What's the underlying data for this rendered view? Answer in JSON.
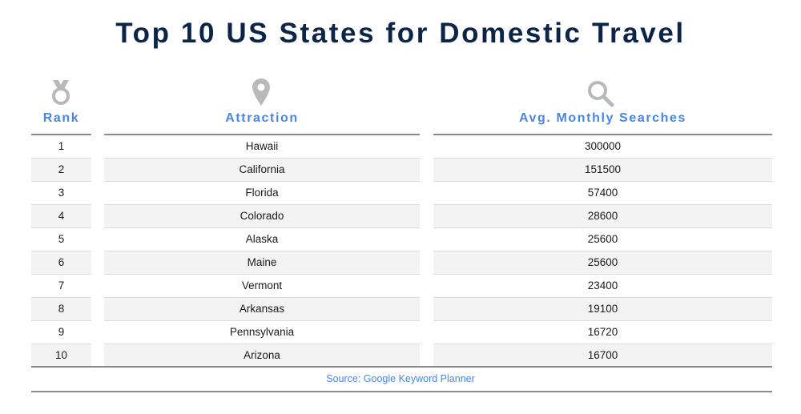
{
  "title": "Top 10 US States for Domestic Travel",
  "columns": {
    "rank": {
      "label": "Rank",
      "icon": "medal-icon"
    },
    "attraction": {
      "label": "Attraction",
      "icon": "location-pin-icon"
    },
    "searches": {
      "label": "Avg. Monthly Searches",
      "icon": "search-icon"
    }
  },
  "colors": {
    "title": "#0b2447",
    "accent": "#4a86e0",
    "icon": "#b9b9b9",
    "stripe": "#f3f3f3"
  },
  "source": "Source: Google Keyword Planner",
  "chart_data": {
    "type": "table",
    "title": "Top 10 US States for Domestic Travel",
    "columns": [
      "Rank",
      "Attraction",
      "Avg. Monthly Searches"
    ],
    "rows": [
      {
        "rank": "1",
        "attraction": "Hawaii",
        "searches": "300000"
      },
      {
        "rank": "2",
        "attraction": "California",
        "searches": "151500"
      },
      {
        "rank": "3",
        "attraction": "Florida",
        "searches": "57400"
      },
      {
        "rank": "4",
        "attraction": "Colorado",
        "searches": "28600"
      },
      {
        "rank": "5",
        "attraction": "Alaska",
        "searches": "25600"
      },
      {
        "rank": "6",
        "attraction": "Maine",
        "searches": "25600"
      },
      {
        "rank": "7",
        "attraction": "Vermont",
        "searches": "23400"
      },
      {
        "rank": "8",
        "attraction": "Arkansas",
        "searches": "19100"
      },
      {
        "rank": "9",
        "attraction": "Pennsylvania",
        "searches": "16720"
      },
      {
        "rank": "10",
        "attraction": "Arizona",
        "searches": "16700"
      }
    ],
    "source": "Source: Google Keyword Planner"
  }
}
